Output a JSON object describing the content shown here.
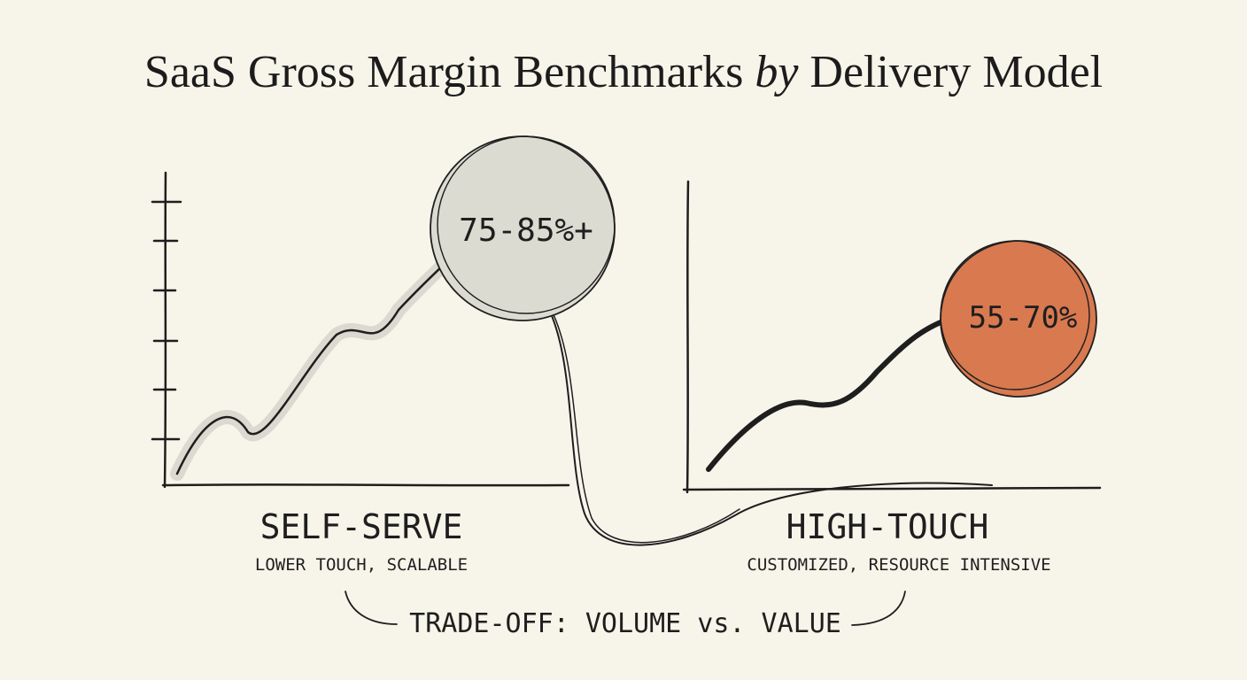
{
  "title": {
    "lead": "SaaS Gross Margin Benchmarks",
    "italic": "by",
    "tail": "Delivery Model"
  },
  "panels": [
    {
      "badge": "75-85%+",
      "label": "SELF-SERVE",
      "sublabel": "LOWER TOUCH, SCALABLE"
    },
    {
      "badge": "55-70%",
      "label": "HIGH-TOUCH",
      "sublabel": "CUSTOMIZED, RESOURCE INTENSIVE"
    }
  ],
  "footer": "TRADE-OFF: VOLUME vs. VALUE"
}
